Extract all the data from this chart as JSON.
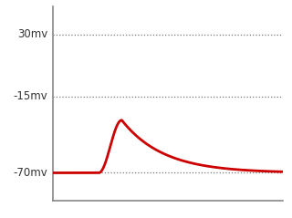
{
  "ylabel_values": [
    30,
    -15,
    -70
  ],
  "ylabel_labels": [
    "30mv",
    "-15mv",
    "-70mv"
  ],
  "line_color": "#cc0000",
  "line_width": 2.0,
  "background_color": "#ffffff",
  "dotted_line_color": "#777777",
  "axis_color": "#888888",
  "ylim": [
    -90,
    50
  ],
  "xlim": [
    0,
    100
  ],
  "label_color": "#333333",
  "label_fontsize": 8.5,
  "baseline": -70,
  "peak": -32,
  "rise_start": 20,
  "peak_t": 30,
  "tau": 18
}
